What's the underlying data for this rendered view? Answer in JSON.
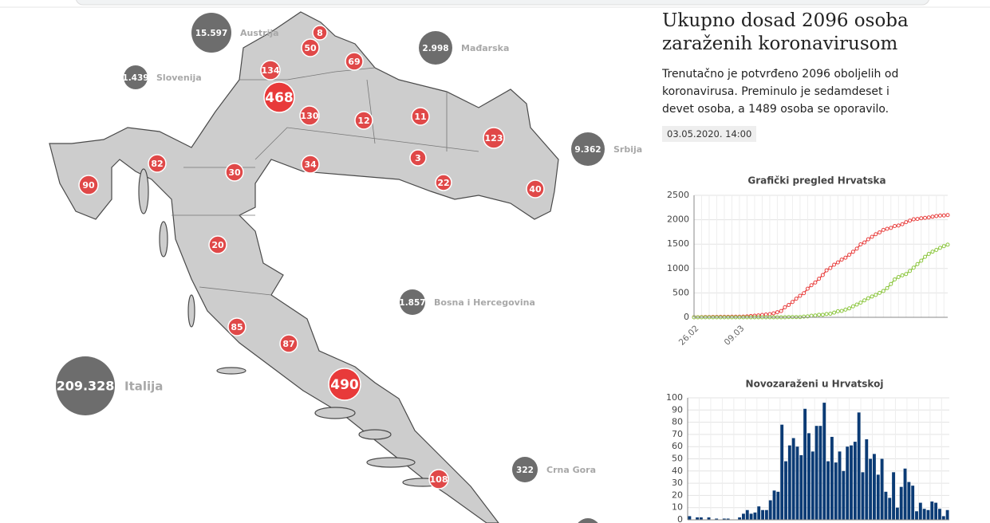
{
  "map": {
    "county_cases": [
      8,
      50,
      69,
      134,
      468,
      130,
      12,
      11,
      123,
      30,
      34,
      3,
      22,
      40,
      82,
      90,
      20,
      85,
      87,
      490,
      108
    ],
    "countries": [
      {
        "name": "Austrija",
        "value": 15597,
        "label": "15.597"
      },
      {
        "name": "Mađarska",
        "value": 2998,
        "label": "2.998"
      },
      {
        "name": "Slovenija",
        "value": 1439,
        "label": "1.439"
      },
      {
        "name": "Srbija",
        "value": 9362,
        "label": "9.362"
      },
      {
        "name": "Bosna i Hercegovina",
        "value": 1857,
        "label": "1.857"
      },
      {
        "name": "Crna Gora",
        "value": 322,
        "label": "322"
      },
      {
        "name": "Italija",
        "value": 209328,
        "label": "209.328"
      }
    ]
  },
  "article": {
    "title": "Ukupno dosad 2096 osoba zaraženih koronavirusom",
    "text": "Trenutačno je potvrđeno 2096 oboljelih od koronavirusa. Preminulo je sedamdeset i devet osoba, a 1489 osoba se oporavilo.",
    "date": "03.05.2020. 14:00"
  },
  "chart_data": [
    {
      "type": "line",
      "title": "Grafički pregled Hrvatska",
      "categories": [
        "26.02",
        null,
        null,
        null,
        null,
        null,
        null,
        null,
        null,
        null,
        null,
        null,
        "09.03",
        null,
        null,
        null,
        null,
        null,
        null,
        null,
        null,
        null,
        null,
        null,
        null,
        null,
        null,
        null,
        null,
        null,
        null,
        null,
        null,
        null,
        null,
        null,
        null,
        null,
        null,
        null,
        null,
        null,
        null,
        null,
        null,
        null,
        null,
        null,
        null,
        null,
        null,
        null,
        null,
        null,
        null,
        null,
        null,
        null,
        null,
        null,
        null,
        null,
        null,
        null,
        null,
        null,
        null,
        null
      ],
      "series": [
        {
          "color": "#e8403f",
          "values": [
            3,
            3,
            5,
            7,
            7,
            9,
            9,
            10,
            10,
            11,
            12,
            12,
            12,
            14,
            19,
            27,
            32,
            38,
            49,
            57,
            65,
            81,
            105,
            128,
            206,
            254,
            315,
            382,
            442,
            495,
            586,
            657,
            713,
            790,
            867,
            963,
            1011,
            1079,
            1126,
            1182,
            1222,
            1282,
            1343,
            1407,
            1495,
            1534,
            1600,
            1650,
            1704,
            1741,
            1791,
            1814,
            1832,
            1871,
            1881,
            1908,
            1950,
            1981,
            2009,
            2016,
            2030,
            2039,
            2047,
            2062,
            2076,
            2085,
            2088,
            2096
          ]
        },
        {
          "color": "#8cc63f",
          "values": [
            0,
            0,
            0,
            0,
            0,
            0,
            0,
            0,
            0,
            0,
            0,
            0,
            0,
            0,
            0,
            0,
            0,
            0,
            0,
            1,
            1,
            1,
            1,
            1,
            1,
            5,
            5,
            5,
            5,
            14,
            19,
            32,
            36,
            52,
            52,
            67,
            73,
            96,
            125,
            131,
            158,
            183,
            225,
            262,
            300,
            347,
            391,
            426,
            460,
            500,
            540,
            599,
            683,
            777,
            826,
            860,
            887,
            950,
            1017,
            1090,
            1160,
            1240,
            1300,
            1345,
            1380,
            1424,
            1459,
            1489
          ]
        }
      ],
      "ylim": [
        0,
        2500
      ],
      "yticks": [
        0,
        500,
        1000,
        1500,
        2000,
        2500
      ],
      "grid": true
    },
    {
      "type": "bar",
      "title": "Novozaraženi u Hrvatskoj",
      "color": "#0b3b75",
      "values": [
        3,
        0,
        2,
        2,
        0,
        2,
        0,
        1,
        0,
        1,
        1,
        0,
        0,
        2,
        5,
        8,
        5,
        6,
        11,
        8,
        8,
        16,
        24,
        23,
        78,
        48,
        61,
        67,
        60,
        53,
        91,
        71,
        56,
        77,
        77,
        96,
        48,
        68,
        47,
        56,
        40,
        60,
        61,
        64,
        88,
        39,
        66,
        50,
        54,
        37,
        50,
        23,
        18,
        39,
        10,
        27,
        42,
        31,
        28,
        7,
        14,
        9,
        8,
        15,
        14,
        9,
        3,
        8
      ],
      "ylim": [
        0,
        100
      ],
      "yticks": [
        0,
        10,
        20,
        30,
        40,
        50,
        60,
        70,
        80,
        90,
        100
      ],
      "grid": true
    }
  ]
}
